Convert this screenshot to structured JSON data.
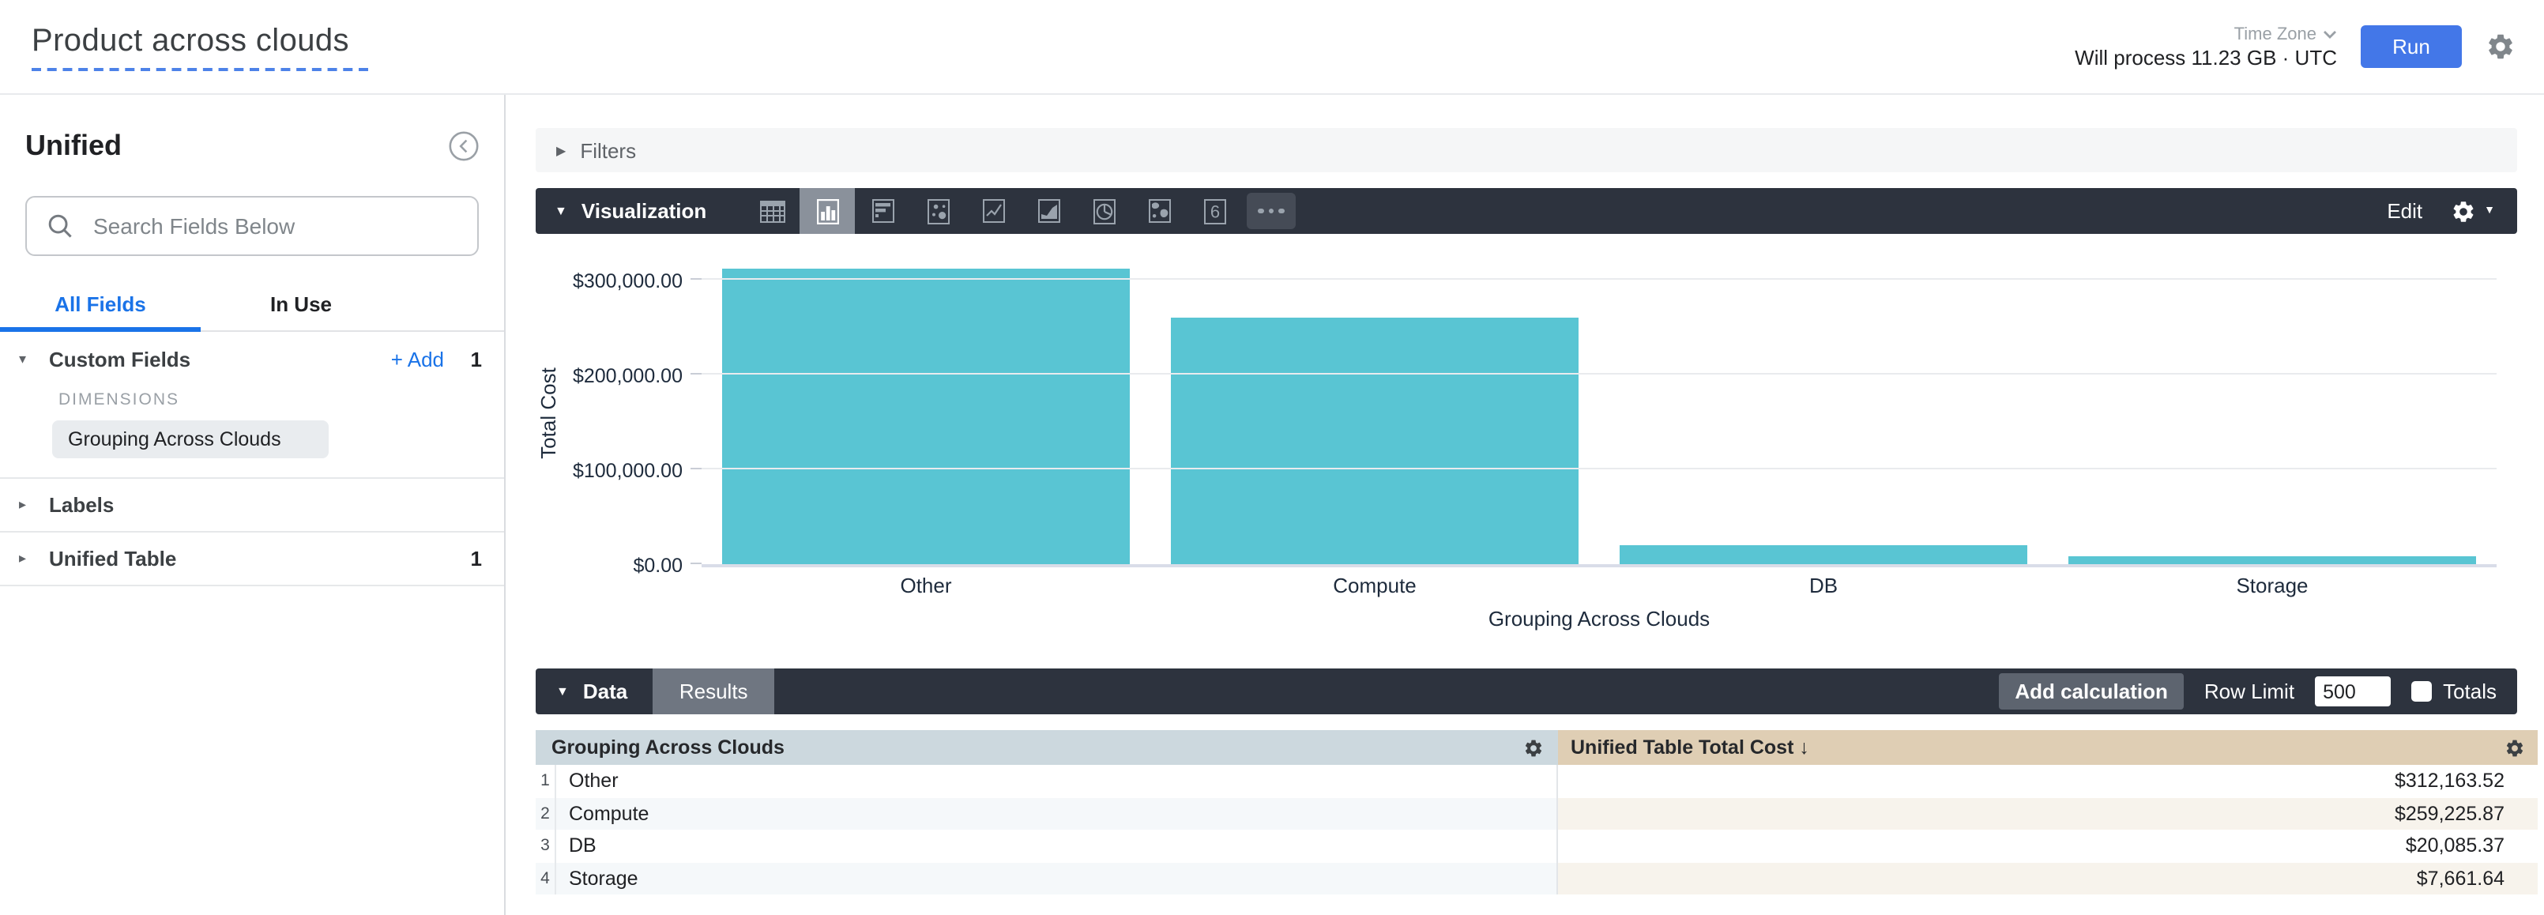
{
  "header": {
    "title": "Product across clouds",
    "time_zone_label": "Time Zone",
    "process_info": "Will process 11.23 GB · UTC",
    "run_label": "Run"
  },
  "sidebar": {
    "view_name": "Unified",
    "search_placeholder": "Search Fields Below",
    "tabs": [
      {
        "label": "All Fields",
        "active": true
      },
      {
        "label": "In Use",
        "active": false
      }
    ],
    "sections": [
      {
        "label": "Custom Fields",
        "expanded": true,
        "add_label": "+ Add",
        "count": "1",
        "group_label": "DIMENSIONS",
        "fields": [
          "Grouping Across Clouds"
        ]
      },
      {
        "label": "Labels",
        "expanded": false,
        "count": ""
      },
      {
        "label": "Unified Table",
        "expanded": false,
        "count": "1"
      }
    ]
  },
  "filters": {
    "label": "Filters"
  },
  "visualization": {
    "label": "Visualization",
    "edit_label": "Edit",
    "icons": [
      "table",
      "column-chart",
      "bar-chart",
      "scatter-plot",
      "line-chart",
      "area-chart",
      "pie-chart",
      "map",
      "single-value",
      "more"
    ],
    "selected_icon": "column-chart"
  },
  "chart_data": {
    "type": "bar",
    "categories": [
      "Other",
      "Compute",
      "DB",
      "Storage"
    ],
    "values": [
      312163.52,
      259225.87,
      20085.37,
      7661.64
    ],
    "title": "",
    "xlabel": "Grouping Across Clouds",
    "ylabel": "Total Cost",
    "ylim": [
      0,
      316667
    ],
    "yticks": [
      {
        "value": 0,
        "label": "$0.00"
      },
      {
        "value": 100000,
        "label": "$100,000.00"
      },
      {
        "value": 200000,
        "label": "$200,000.00"
      },
      {
        "value": 300000,
        "label": "$300,000.00"
      }
    ],
    "bar_color": "#59c5d3",
    "grid": true,
    "legend": false
  },
  "data_panel": {
    "data_tab": "Data",
    "results_tab": "Results",
    "add_calculation_label": "Add calculation",
    "row_limit_label": "Row Limit",
    "row_limit_value": "500",
    "totals_label": "Totals"
  },
  "table": {
    "columns": [
      {
        "label": "Grouping Across Clouds"
      },
      {
        "label": "Unified Table Total Cost",
        "sort_arrow": "↓"
      }
    ],
    "rows": [
      {
        "num": "1",
        "dimension": "Other",
        "value": "$312,163.52"
      },
      {
        "num": "2",
        "dimension": "Compute",
        "value": "$259,225.87"
      },
      {
        "num": "3",
        "dimension": "DB",
        "value": "$20,085.37"
      },
      {
        "num": "4",
        "dimension": "Storage",
        "value": "$7,661.64"
      }
    ]
  },
  "colors": {
    "accent_blue": "#4377e8",
    "link_blue": "#1a73e8",
    "bar_teal": "#59c5d3",
    "toolbar_dark": "#2d333e",
    "dimension_header": "#ccd8de",
    "measure_header": "#dfceb4"
  }
}
